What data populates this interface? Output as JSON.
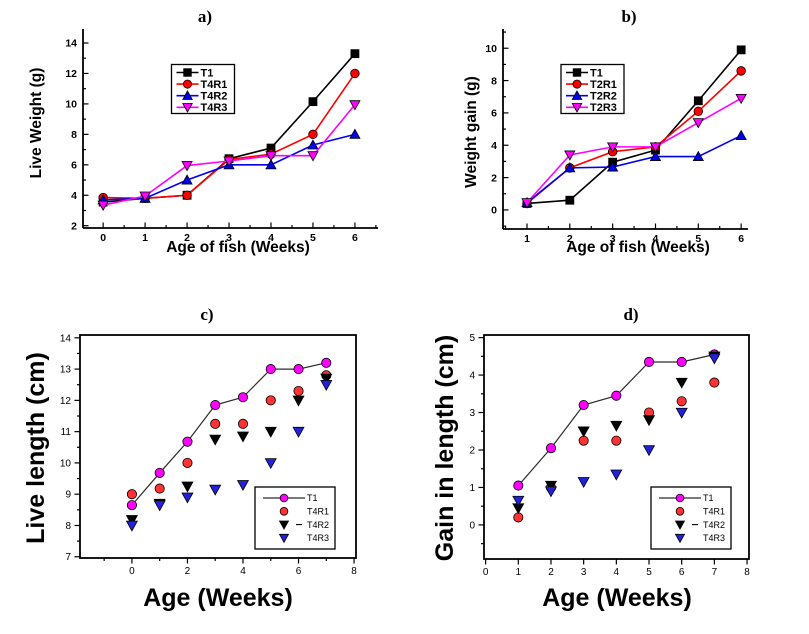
{
  "page": {
    "background": "#ffffff"
  },
  "chart_data": [
    {
      "id": "a",
      "type": "line",
      "title": "a)",
      "xlabel": "Age of fish (Weeks)",
      "ylabel": "Live Weight (g)",
      "xlim": [
        -0.48,
        6.55
      ],
      "ylim": [
        1.85,
        14.92
      ],
      "xticks": [
        0,
        1,
        2,
        3,
        4,
        5,
        6
      ],
      "yticks": [
        2,
        4,
        6,
        8,
        10,
        12,
        14
      ],
      "x_minor_step": 0.5,
      "y_minor_step": 1,
      "frame": "L",
      "tick_dir": "in",
      "legend_position": "upper-left-center",
      "grid": false,
      "series": [
        {
          "name": "T1",
          "color": "#000000",
          "marker": "square",
          "line": true,
          "x": [
            0,
            1,
            2,
            3,
            4,
            5,
            6
          ],
          "y": [
            3.55,
            3.8,
            4.0,
            6.4,
            7.1,
            10.15,
            13.3
          ]
        },
        {
          "name": "T4R1",
          "color": "#ff0000",
          "marker": "circle",
          "line": true,
          "x": [
            0,
            1,
            2,
            3,
            4,
            5,
            6
          ],
          "y": [
            3.85,
            3.8,
            4.0,
            6.35,
            6.7,
            8.0,
            12.0
          ]
        },
        {
          "name": "T4R2",
          "color": "#0000ee",
          "marker": "triangle-up",
          "line": true,
          "x": [
            0,
            1,
            2,
            3,
            4,
            5,
            6
          ],
          "y": [
            3.7,
            3.8,
            5.0,
            6.0,
            6.0,
            7.3,
            8.0
          ]
        },
        {
          "name": "T4R3",
          "color": "#ff00ff",
          "marker": "triangle-down",
          "line": true,
          "x": [
            0,
            1,
            2,
            3,
            4,
            5,
            6
          ],
          "y": [
            3.35,
            3.95,
            5.95,
            6.25,
            6.6,
            6.6,
            9.95
          ]
        }
      ]
    },
    {
      "id": "b",
      "type": "line",
      "title": "b)",
      "xlabel": "Age of fish (Weeks)",
      "ylabel": "Weight gain (g)",
      "xlim": [
        0.44,
        6.16
      ],
      "ylim": [
        -1.18,
        11.19
      ],
      "xticks": [
        1,
        2,
        3,
        4,
        5,
        6
      ],
      "yticks": [
        0,
        2,
        4,
        6,
        8,
        10
      ],
      "x_minor_step": 0.5,
      "y_minor_step": 1,
      "frame": "L",
      "tick_dir": "in",
      "legend_position": "upper-left-center",
      "grid": false,
      "series": [
        {
          "name": "T1",
          "color": "#000000",
          "marker": "square",
          "line": true,
          "x": [
            1,
            2,
            3,
            4,
            5,
            6
          ],
          "y": [
            0.4,
            0.6,
            2.95,
            3.7,
            6.75,
            9.9
          ]
        },
        {
          "name": "T2R1",
          "color": "#ff0000",
          "marker": "circle",
          "line": true,
          "x": [
            1,
            2,
            3,
            4,
            5,
            6
          ],
          "y": [
            0.4,
            2.6,
            3.6,
            3.9,
            6.1,
            8.6
          ]
        },
        {
          "name": "T2R2",
          "color": "#0000ee",
          "marker": "triangle-up",
          "line": true,
          "x": [
            1,
            2,
            3,
            4,
            5,
            6
          ],
          "y": [
            0.45,
            2.6,
            2.65,
            3.3,
            3.3,
            4.6
          ]
        },
        {
          "name": "T2R3",
          "color": "#ff00ff",
          "marker": "triangle-down",
          "line": true,
          "x": [
            1,
            2,
            3,
            4,
            5,
            6
          ],
          "y": [
            0.45,
            3.4,
            3.9,
            3.9,
            5.4,
            6.9
          ]
        }
      ]
    },
    {
      "id": "c",
      "type": "scatter",
      "title": "c)",
      "xlabel": "Age (Weeks)",
      "ylabel": "Live length (cm)",
      "xlim": [
        -1.87,
        8.07
      ],
      "ylim": [
        6.96,
        14.09
      ],
      "xticks": [
        0,
        2,
        4,
        6,
        8
      ],
      "yticks": [
        7,
        8,
        9,
        10,
        11,
        12,
        13,
        14
      ],
      "x_minor_step": 1,
      "y_minor_step": 0.5,
      "frame": "box",
      "tick_dir": "out",
      "legend_position": "lower-right",
      "grid": false,
      "series": [
        {
          "name": "T1",
          "color": "#ff00ff",
          "marker": "circle",
          "line": true,
          "line_color": "#2b2b2b",
          "x": [
            0,
            1,
            2,
            3,
            4,
            5,
            6,
            7
          ],
          "y": [
            8.65,
            9.68,
            10.68,
            11.85,
            12.1,
            13.0,
            13.0,
            13.2
          ]
        },
        {
          "name": "T4R1",
          "color": "#ff3333",
          "marker": "circle",
          "line": false,
          "x": [
            0,
            1,
            2,
            3,
            4,
            5,
            6,
            7
          ],
          "y": [
            9.0,
            9.18,
            10.0,
            11.25,
            11.25,
            12.0,
            12.3,
            12.8
          ]
        },
        {
          "name": "T4R2",
          "color": "#000000",
          "marker": "triangle-down",
          "line": false,
          "legend_dash": true,
          "x": [
            0,
            1,
            2,
            3,
            4,
            5,
            6,
            7
          ],
          "y": [
            8.18,
            8.7,
            9.25,
            10.75,
            10.85,
            11.0,
            12.0,
            12.7
          ]
        },
        {
          "name": "T4R3",
          "color": "#2222dd",
          "marker": "triangle-down",
          "line": false,
          "x": [
            0,
            1,
            2,
            3,
            4,
            5,
            6,
            7
          ],
          "y": [
            8.0,
            8.65,
            8.9,
            9.15,
            9.3,
            10.0,
            11.0,
            12.5
          ]
        }
      ]
    },
    {
      "id": "d",
      "type": "scatter",
      "title": "d)",
      "xlabel": "Age (Weeks)",
      "ylabel": "Gain in length (cm)",
      "xlim": [
        -0.05,
        8.06
      ],
      "ylim": [
        -0.91,
        5.07
      ],
      "xticks": [
        0,
        1,
        2,
        3,
        4,
        5,
        6,
        7,
        8
      ],
      "yticks": [
        0,
        1,
        2,
        3,
        4,
        5
      ],
      "x_minor_step": null,
      "y_minor_step": 0.5,
      "frame": "box",
      "tick_dir": "out",
      "legend_position": "lower-right",
      "grid": false,
      "series": [
        {
          "name": "T1",
          "color": "#ff00ff",
          "marker": "circle",
          "line": true,
          "line_color": "#2b2b2b",
          "x": [
            1,
            2,
            3,
            4,
            5,
            6,
            7
          ],
          "y": [
            1.05,
            2.05,
            3.2,
            3.45,
            4.35,
            4.35,
            4.55
          ]
        },
        {
          "name": "T4R1",
          "color": "#ff3333",
          "marker": "circle",
          "line": false,
          "x": [
            1,
            2,
            3,
            4,
            5,
            6,
            7
          ],
          "y": [
            0.2,
            1.0,
            2.25,
            2.25,
            3.0,
            3.3,
            3.8
          ]
        },
        {
          "name": "T4R2",
          "color": "#000000",
          "marker": "triangle-down",
          "line": false,
          "legend_dash": true,
          "x": [
            1,
            2,
            3,
            4,
            5,
            6,
            7
          ],
          "y": [
            0.45,
            1.05,
            2.5,
            2.65,
            2.8,
            3.8,
            4.5
          ]
        },
        {
          "name": "T4R3",
          "color": "#2222dd",
          "marker": "triangle-down",
          "line": false,
          "x": [
            1,
            2,
            3,
            4,
            5,
            6,
            7
          ],
          "y": [
            0.65,
            0.9,
            1.15,
            1.35,
            2.0,
            3.0,
            4.45
          ]
        }
      ]
    }
  ]
}
